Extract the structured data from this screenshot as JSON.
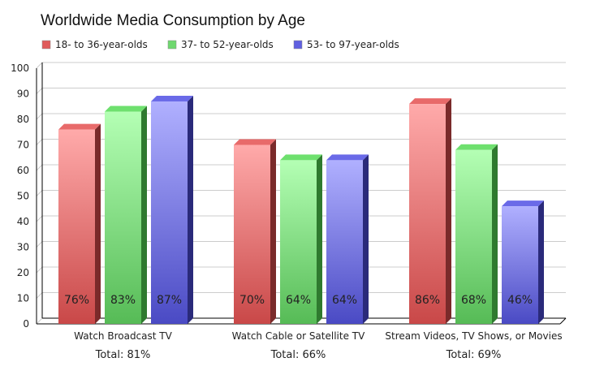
{
  "chart_data": {
    "type": "bar",
    "title": "Worldwide Media Consumption by Age",
    "categories": [
      "Watch Broadcast TV",
      "Watch Cable or Satellite TV",
      "Stream Videos, TV Shows, or Movies"
    ],
    "category_totals": [
      "Total: 81%",
      "Total: 66%",
      "Total: 69%"
    ],
    "series": [
      {
        "name": "18- to 36-year-olds",
        "values": [
          76,
          70,
          86
        ],
        "labels": [
          "76%",
          "70%",
          "86%"
        ],
        "color": "#e05a5a"
      },
      {
        "name": "37- to 52-year-olds",
        "values": [
          83,
          64,
          68
        ],
        "labels": [
          "83%",
          "64%",
          "68%"
        ],
        "color": "#6fd86f"
      },
      {
        "name": "53- to 97-year-olds",
        "values": [
          87,
          64,
          46
        ],
        "labels": [
          "87%",
          "64%",
          "46%"
        ],
        "color": "#6060e0"
      }
    ],
    "ylim": [
      0,
      100
    ],
    "yticks": [
      0,
      10,
      20,
      30,
      40,
      50,
      60,
      70,
      80,
      90,
      100
    ],
    "grid": true,
    "legend": "top-left",
    "style": "3d"
  }
}
